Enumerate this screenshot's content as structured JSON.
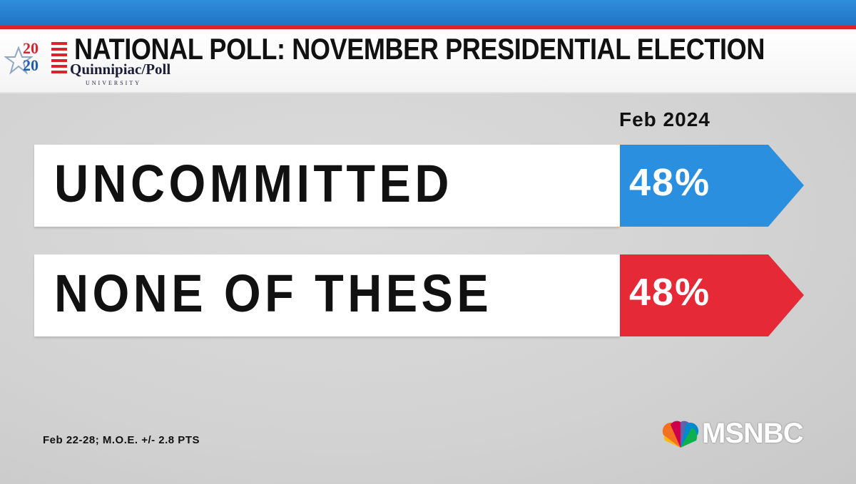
{
  "header": {
    "title": "NATIONAL POLL: NOVEMBER PRESIDENTIAL ELECTION",
    "logo": {
      "year_top": "20",
      "year_bottom": "20",
      "name": "Quinnipiac/Poll",
      "university": "UNIVERSITY"
    }
  },
  "chart_data": {
    "type": "table",
    "column_header": "Feb 2024",
    "rows": [
      {
        "label": "UNCOMMITTED",
        "value": "48%",
        "color": "#2b8fe0"
      },
      {
        "label": "NONE OF THESE",
        "value": "48%",
        "color": "#e52936"
      }
    ]
  },
  "footnote": "Feb 22-28; M.O.E. +/- 2.8 PTS",
  "branding": {
    "network": "MSNBC",
    "icon": "peacock-icon"
  },
  "colors": {
    "top_band": "#2f8fdc",
    "accent_red": "#d9242f",
    "accent_blue": "#2b8fe0"
  }
}
